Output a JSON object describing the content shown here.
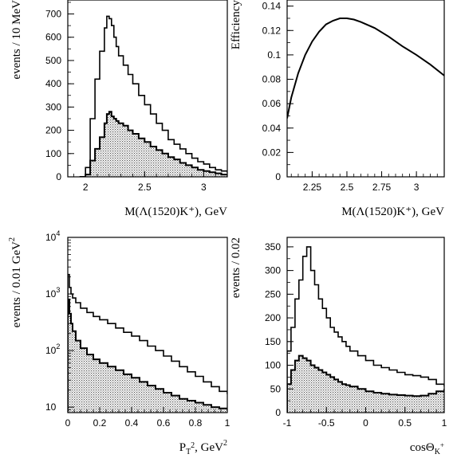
{
  "chart_data": [
    {
      "id": "mass-spectrum",
      "type": "histogram",
      "xlabel": "M(Λ(1520)K⁺),  GeV",
      "ylabel": "events / 10 MeV",
      "xlim": [
        1.85,
        3.2
      ],
      "ylim": [
        0,
        760
      ],
      "xticks": [
        2,
        2.5,
        3
      ],
      "xtick_labels": [
        "2",
        "2.5",
        "3"
      ],
      "yticks": [
        0,
        100,
        200,
        300,
        400,
        500,
        600,
        700
      ],
      "ytick_labels": [
        "0",
        "100",
        "200",
        "300",
        "400",
        "500",
        "600",
        "700"
      ],
      "series": [
        {
          "style": "outline",
          "x": [
            1.95,
            2.0,
            2.04,
            2.08,
            2.12,
            2.16,
            2.18,
            2.2,
            2.22,
            2.24,
            2.26,
            2.28,
            2.32,
            2.36,
            2.4,
            2.45,
            2.5,
            2.55,
            2.6,
            2.65,
            2.7,
            2.75,
            2.8,
            2.85,
            2.9,
            2.95,
            3.0,
            3.05,
            3.1,
            3.15,
            3.2
          ],
          "values": [
            0,
            40,
            250,
            420,
            540,
            640,
            690,
            680,
            650,
            600,
            560,
            520,
            480,
            440,
            400,
            350,
            310,
            270,
            230,
            200,
            160,
            140,
            120,
            100,
            80,
            65,
            55,
            40,
            30,
            25,
            18
          ]
        },
        {
          "style": "hatched",
          "x": [
            1.95,
            2.0,
            2.04,
            2.08,
            2.12,
            2.16,
            2.18,
            2.2,
            2.22,
            2.24,
            2.26,
            2.28,
            2.32,
            2.36,
            2.4,
            2.45,
            2.5,
            2.55,
            2.6,
            2.65,
            2.7,
            2.75,
            2.8,
            2.85,
            2.9,
            2.95,
            3.0,
            3.05,
            3.1,
            3.15,
            3.2
          ],
          "values": [
            0,
            10,
            70,
            120,
            170,
            230,
            270,
            280,
            260,
            250,
            240,
            230,
            220,
            200,
            185,
            165,
            150,
            130,
            115,
            100,
            85,
            75,
            60,
            50,
            40,
            30,
            25,
            20,
            15,
            10,
            8
          ]
        }
      ]
    },
    {
      "id": "efficiency",
      "type": "line",
      "xlabel": "M(Λ(1520)K⁺),  GeV",
      "ylabel": "Efficiency",
      "xlim": [
        2.07,
        3.2
      ],
      "ylim": [
        0,
        0.145
      ],
      "xticks": [
        2.25,
        2.5,
        2.75,
        3
      ],
      "xtick_labels": [
        "2.25",
        "2.5",
        "2.75",
        "3"
      ],
      "yticks": [
        0,
        0.02,
        0.04,
        0.06,
        0.08,
        0.1,
        0.12,
        0.14
      ],
      "ytick_labels": [
        "0",
        "0.02",
        "0.04",
        "0.06",
        "0.08",
        "0.1",
        "0.12",
        "0.14"
      ],
      "series": [
        {
          "style": "line",
          "x": [
            2.07,
            2.1,
            2.15,
            2.2,
            2.25,
            2.3,
            2.35,
            2.4,
            2.45,
            2.5,
            2.55,
            2.6,
            2.7,
            2.8,
            2.9,
            3.0,
            3.1,
            3.2
          ],
          "values": [
            0.048,
            0.065,
            0.085,
            0.1,
            0.111,
            0.119,
            0.125,
            0.128,
            0.13,
            0.13,
            0.129,
            0.127,
            0.122,
            0.115,
            0.107,
            0.1,
            0.092,
            0.083
          ]
        }
      ]
    },
    {
      "id": "pt2-spectrum",
      "type": "histogram",
      "xlabel": "P",
      "xlabel_sub": "T",
      "xlabel_sup": "2",
      "xlabel_rest": ",  GeV",
      "xlabel_rest_sup": "2",
      "ylabel": "events / 0.01 GeV",
      "ylabel_sup": "2",
      "log_y": true,
      "xlim": [
        0,
        1
      ],
      "ylim": [
        8,
        10000
      ],
      "xticks": [
        0,
        0.2,
        0.4,
        0.6,
        0.8,
        1
      ],
      "xtick_labels": [
        "0",
        "0.2",
        "0.4",
        "0.6",
        "0.8",
        "1"
      ],
      "yticks": [
        10,
        100,
        1000,
        10000
      ],
      "ytick_base": "10",
      "ytick_exps": [
        "",
        "2",
        "3",
        "4"
      ],
      "series": [
        {
          "style": "outline",
          "x": [
            0,
            0.01,
            0.02,
            0.03,
            0.05,
            0.08,
            0.12,
            0.16,
            0.2,
            0.25,
            0.3,
            0.35,
            0.4,
            0.45,
            0.5,
            0.55,
            0.6,
            0.65,
            0.7,
            0.75,
            0.8,
            0.85,
            0.9,
            0.95,
            1.0
          ],
          "values": [
            2200,
            1300,
            1000,
            850,
            700,
            560,
            470,
            400,
            350,
            300,
            250,
            210,
            180,
            150,
            120,
            100,
            80,
            65,
            52,
            42,
            35,
            28,
            23,
            19,
            17
          ]
        },
        {
          "style": "hatched",
          "x": [
            0,
            0.01,
            0.02,
            0.03,
            0.05,
            0.08,
            0.12,
            0.16,
            0.2,
            0.25,
            0.3,
            0.35,
            0.4,
            0.45,
            0.5,
            0.55,
            0.6,
            0.65,
            0.7,
            0.75,
            0.8,
            0.85,
            0.9,
            0.95,
            1.0
          ],
          "values": [
            800,
            450,
            300,
            220,
            150,
            110,
            85,
            70,
            60,
            52,
            45,
            38,
            33,
            28,
            24,
            21,
            18,
            16,
            14,
            13,
            12,
            11,
            10,
            9.5,
            9
          ]
        }
      ]
    },
    {
      "id": "cos-theta",
      "type": "histogram",
      "xlabel": "cosΘ",
      "xlabel_sub": "K",
      "xlabel_sub_sup": "+",
      "ylabel": "events / 0.02",
      "xlim": [
        -1,
        1
      ],
      "ylim": [
        0,
        370
      ],
      "xticks": [
        -1,
        -0.5,
        0,
        0.5,
        1
      ],
      "xtick_labels": [
        "-1",
        "-0.5",
        "0",
        "0.5",
        "1"
      ],
      "yticks": [
        0,
        50,
        100,
        150,
        200,
        250,
        300,
        350
      ],
      "ytick_labels": [
        "0",
        "50",
        "100",
        "150",
        "200",
        "250",
        "300",
        "350"
      ],
      "series": [
        {
          "style": "outline",
          "x": [
            -1,
            -0.95,
            -0.9,
            -0.85,
            -0.8,
            -0.75,
            -0.7,
            -0.65,
            -0.6,
            -0.55,
            -0.5,
            -0.45,
            -0.4,
            -0.35,
            -0.3,
            -0.25,
            -0.2,
            -0.1,
            0,
            0.1,
            0.2,
            0.3,
            0.4,
            0.5,
            0.6,
            0.7,
            0.8,
            0.9,
            1.0
          ],
          "values": [
            130,
            180,
            240,
            280,
            330,
            350,
            300,
            270,
            240,
            220,
            200,
            180,
            170,
            160,
            150,
            140,
            130,
            120,
            110,
            100,
            95,
            90,
            85,
            80,
            78,
            75,
            70,
            60,
            55
          ]
        },
        {
          "style": "hatched",
          "x": [
            -1,
            -0.95,
            -0.9,
            -0.85,
            -0.8,
            -0.75,
            -0.7,
            -0.65,
            -0.6,
            -0.55,
            -0.5,
            -0.45,
            -0.4,
            -0.35,
            -0.3,
            -0.25,
            -0.2,
            -0.1,
            0,
            0.1,
            0.2,
            0.3,
            0.4,
            0.5,
            0.6,
            0.7,
            0.8,
            0.9,
            1.0
          ],
          "values": [
            60,
            90,
            110,
            120,
            115,
            110,
            100,
            95,
            90,
            85,
            80,
            75,
            70,
            65,
            60,
            58,
            55,
            50,
            45,
            42,
            40,
            38,
            37,
            36,
            35,
            36,
            40,
            45,
            50
          ]
        }
      ]
    }
  ]
}
